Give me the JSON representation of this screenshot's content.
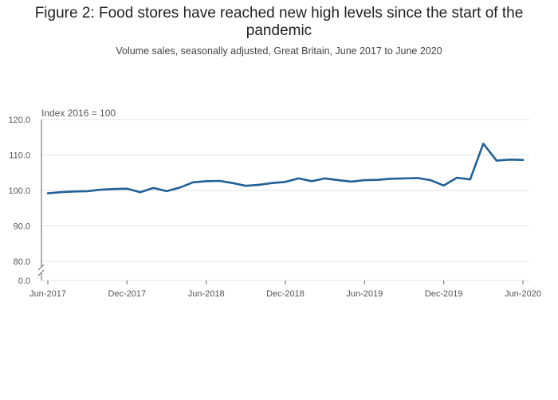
{
  "chart_data": {
    "type": "line",
    "title": "Figure 2: Food stores have reached new high levels since the start of the pandemic",
    "subtitle": "Volume sales, seasonally adjusted, Great Britain, June 2017 to June 2020",
    "ylabel": "Index 2016 = 100",
    "ylim": [
      80,
      120
    ],
    "y_ticks": [
      "120.0",
      "110.0",
      "100.0",
      "90.0",
      "80.0"
    ],
    "y_tick_values": [
      120,
      110,
      100,
      90,
      80
    ],
    "y_zero_label": "0.0",
    "axis_break": true,
    "grid": true,
    "line_color": "#206095",
    "x_tick_labels": [
      "Jun-2017",
      "Dec-2017",
      "Jun-2018",
      "Dec-2018",
      "Jun-2019",
      "Dec-2019",
      "Jun-2020"
    ],
    "x_tick_indices": [
      0,
      6,
      12,
      18,
      24,
      30,
      36
    ],
    "x": [
      "Jun-2017",
      "Jul-2017",
      "Aug-2017",
      "Sep-2017",
      "Oct-2017",
      "Nov-2017",
      "Dec-2017",
      "Jan-2018",
      "Feb-2018",
      "Mar-2018",
      "Apr-2018",
      "May-2018",
      "Jun-2018",
      "Jul-2018",
      "Aug-2018",
      "Sep-2018",
      "Oct-2018",
      "Nov-2018",
      "Dec-2018",
      "Jan-2019",
      "Feb-2019",
      "Mar-2019",
      "Apr-2019",
      "May-2019",
      "Jun-2019",
      "Jul-2019",
      "Aug-2019",
      "Sep-2019",
      "Oct-2019",
      "Nov-2019",
      "Dec-2019",
      "Jan-2020",
      "Feb-2020",
      "Mar-2020",
      "Apr-2020",
      "May-2020",
      "Jun-2020"
    ],
    "series": [
      {
        "values": [
          99.2,
          99.5,
          99.7,
          99.8,
          100.2,
          100.4,
          100.5,
          99.5,
          100.7,
          99.8,
          100.8,
          102.3,
          102.6,
          102.7,
          102.1,
          101.3,
          101.6,
          102.1,
          102.4,
          103.4,
          102.6,
          103.4,
          102.9,
          102.5,
          102.9,
          103.0,
          103.3,
          103.4,
          103.5,
          102.9,
          101.4,
          103.6,
          103.1,
          113.2,
          108.4,
          108.7,
          108.6
        ]
      }
    ]
  }
}
